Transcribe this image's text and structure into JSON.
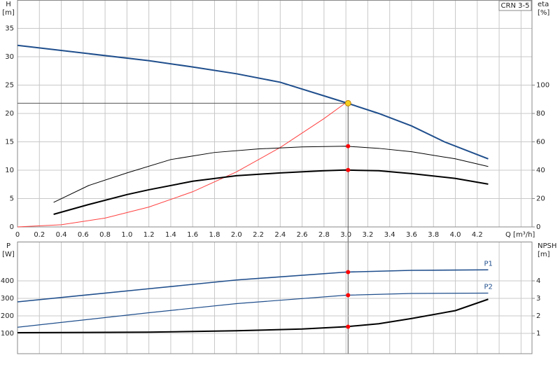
{
  "chart_data": [
    {
      "type": "line",
      "label_box": "CRN 3-5",
      "xlabel": "Q [m³/h]",
      "ylabel": [
        "H",
        "[m]"
      ],
      "y2label": [
        "eta",
        "[%]"
      ],
      "xlim": [
        0,
        4.7
      ],
      "xticks": [
        0,
        0.2,
        0.4,
        0.6,
        0.8,
        {
          "value": 1,
          "label": "1.0"
        },
        1.2,
        1.4,
        1.6,
        1.8,
        {
          "value": 2,
          "label": "2.0"
        },
        2.2,
        2.4,
        2.6,
        2.8,
        {
          "value": 3,
          "label": "3.0"
        },
        3.2,
        3.4,
        3.6,
        3.8,
        {
          "value": 4,
          "label": "4.0"
        },
        4.2
      ],
      "ylim": [
        0,
        40
      ],
      "yticks": [
        0,
        5,
        10,
        15,
        20,
        25,
        30,
        35
      ],
      "y2lim": [
        0,
        160
      ],
      "y2ticks": [
        0,
        20,
        40,
        60,
        80,
        100
      ],
      "grid": true,
      "crosshair": true,
      "series": [
        {
          "color": "#1f4e8c",
          "width": 2,
          "axis": "y",
          "x": [
            0,
            1.2,
            1.6,
            2.0,
            2.4,
            2.8,
            3.0,
            3.3,
            3.6,
            3.9,
            4.3
          ],
          "values": [
            32.0,
            29.3,
            28.2,
            27.0,
            25.5,
            23.1,
            21.9,
            20.0,
            17.8,
            15.0,
            12.0
          ]
        },
        {
          "color": "#ff4040",
          "width": 1,
          "axis": "y",
          "x": [
            0,
            0.4,
            0.8,
            1.2,
            1.6,
            2.0,
            2.4,
            2.8,
            3.0
          ],
          "values": [
            0,
            0.39,
            1.56,
            3.5,
            6.2,
            9.7,
            14.0,
            19.1,
            21.9
          ]
        },
        {
          "color": "#000000",
          "width": 1,
          "axis": "y2",
          "x": [
            0.33,
            0.65,
            1.0,
            1.4,
            1.8,
            2.2,
            2.6,
            3.0,
            3.3,
            3.6,
            4.0,
            4.3
          ],
          "values": [
            17.3,
            29.2,
            38.1,
            47.5,
            52.5,
            55,
            56.4,
            56.9,
            55.4,
            53,
            48,
            42.6
          ]
        },
        {
          "color": "#000000",
          "width": 2,
          "axis": "y2",
          "x": [
            0.33,
            0.65,
            1.0,
            1.2,
            1.6,
            2.0,
            2.4,
            2.8,
            3.0,
            3.3,
            3.6,
            4.0,
            4.3
          ],
          "values": [
            8.9,
            15.8,
            22.8,
            26.2,
            32.2,
            36.1,
            38.1,
            39.6,
            40.1,
            39.6,
            37.6,
            34.2,
            30.2
          ]
        }
      ],
      "markers": [
        {
          "x": 3.02,
          "y": 21.8,
          "axis": "y",
          "color": "#f5d020"
        },
        {
          "x": 3.02,
          "y": 56.9,
          "axis": "y2",
          "color": "#ff0000"
        },
        {
          "x": 3.02,
          "y": 40.1,
          "axis": "y2",
          "color": "#ff0000"
        }
      ]
    },
    {
      "type": "line",
      "ylabel": [
        "P",
        "[W]"
      ],
      "y2label": [
        "NPSH",
        "[m]"
      ],
      "xlim": [
        0,
        4.7
      ],
      "ylim": [
        -16,
        624
      ],
      "yticks": [
        100,
        200,
        300,
        400
      ],
      "y2lim": [
        -0.16,
        6.24
      ],
      "y2ticks": [
        1,
        2,
        3,
        4
      ],
      "grid": true,
      "series": [
        {
          "name": "P1",
          "color": "#1f4e8c",
          "width": 1.6,
          "axis": "y",
          "x": [
            0,
            1.2,
            2.0,
            3.0,
            3.6,
            4.3
          ],
          "values": [
            280,
            355,
            405,
            450,
            460,
            463
          ]
        },
        {
          "name": "P2",
          "color": "#1f4e8c",
          "width": 1.2,
          "axis": "y",
          "x": [
            0,
            1.2,
            2.0,
            3.0,
            3.6,
            4.3
          ],
          "values": [
            135,
            218,
            270,
            318,
            328,
            330
          ]
        },
        {
          "color": "#000000",
          "width": 2,
          "axis": "y2",
          "x": [
            0,
            1.2,
            2.0,
            2.6,
            3.0,
            3.3,
            3.6,
            4.0,
            4.3
          ],
          "values": [
            1.04,
            1.07,
            1.15,
            1.25,
            1.38,
            1.55,
            1.85,
            2.3,
            2.95
          ]
        }
      ],
      "markers": [
        {
          "x": 3.02,
          "y": 450,
          "axis": "y",
          "color": "#ff0000"
        },
        {
          "x": 3.02,
          "y": 318,
          "axis": "y",
          "color": "#ff0000"
        },
        {
          "x": 3.02,
          "y": 1.38,
          "axis": "y2",
          "color": "#ff0000"
        }
      ]
    }
  ]
}
